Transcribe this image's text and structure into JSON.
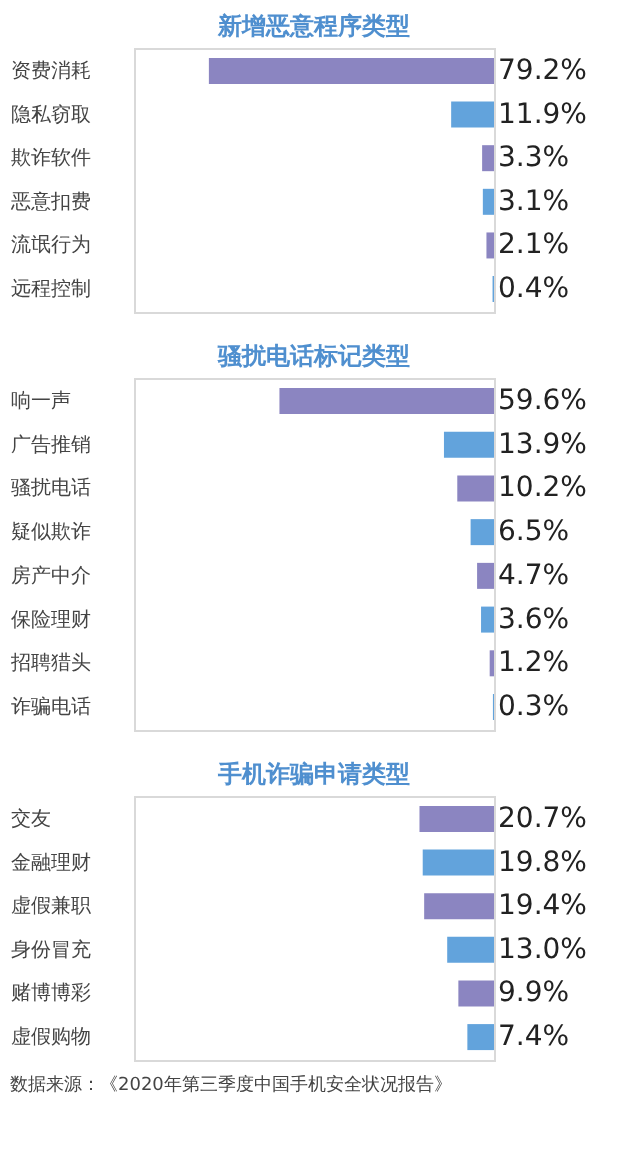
{
  "chart_data": [
    {
      "type": "bar",
      "orientation": "horizontal",
      "title": "新增恶意程序类型",
      "categories": [
        "资费消耗",
        "隐私窃取",
        "欺诈软件",
        "恶意扣费",
        "流氓行为",
        "远程控制"
      ],
      "values": [
        79.2,
        11.9,
        3.3,
        3.1,
        2.1,
        0.4
      ],
      "colors": [
        "#8b85c1",
        "#62a3dc",
        "#8b85c1",
        "#62a3dc",
        "#8b85c1",
        "#62a3dc"
      ],
      "value_labels": [
        "79.2%",
        "11.9%",
        "3.3%",
        "3.1%",
        "2.1%",
        "0.4%"
      ],
      "xlim": [
        100,
        0
      ],
      "tick_labels": false,
      "grid": false
    },
    {
      "type": "bar",
      "orientation": "horizontal",
      "title": "骚扰电话标记类型",
      "categories": [
        "响一声",
        "广告推销",
        "骚扰电话",
        "疑似欺诈",
        "房产中介",
        "保险理财",
        "招聘猎头",
        "诈骗电话"
      ],
      "values": [
        59.6,
        13.9,
        10.2,
        6.5,
        4.7,
        3.6,
        1.2,
        0.3
      ],
      "colors": [
        "#8b85c1",
        "#62a3dc",
        "#8b85c1",
        "#62a3dc",
        "#8b85c1",
        "#62a3dc",
        "#8b85c1",
        "#62a3dc"
      ],
      "value_labels": [
        "59.6%",
        "13.9%",
        "10.2%",
        "6.5%",
        "4.7%",
        "3.6%",
        "1.2%",
        "0.3%"
      ],
      "xlim": [
        100,
        0
      ],
      "tick_labels": false,
      "grid": false
    },
    {
      "type": "bar",
      "orientation": "horizontal",
      "title": "手机诈骗申请类型",
      "categories": [
        "交友",
        "金融理财",
        "虚假兼职",
        "身份冒充",
        "赌博博彩",
        "虚假购物"
      ],
      "values": [
        20.7,
        19.8,
        19.4,
        13.0,
        9.9,
        7.4
      ],
      "colors": [
        "#8b85c1",
        "#62a3dc",
        "#8b85c1",
        "#62a3dc",
        "#8b85c1",
        "#62a3dc"
      ],
      "value_labels": [
        "20.7%",
        "19.8%",
        "19.4%",
        "13.0%",
        "9.9%",
        "7.4%"
      ],
      "xlim": [
        100,
        0
      ],
      "tick_labels": false,
      "grid": false,
      "annotations": [
        "数据来源：《2020年第三季度中国手机安全状况报告》"
      ]
    }
  ]
}
